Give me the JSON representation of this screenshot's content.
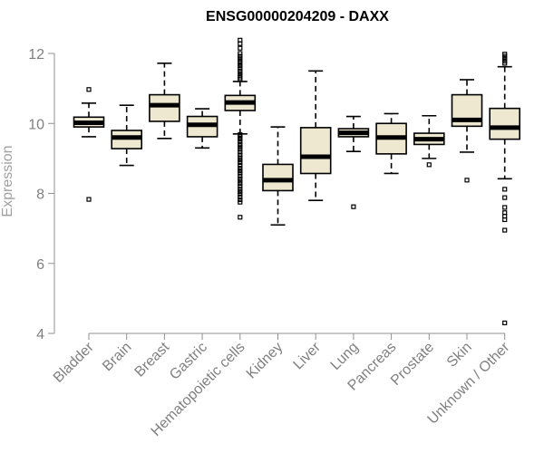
{
  "chart_data": {
    "type": "box",
    "title": "ENSG00000204209 - DAXX",
    "xlabel": "",
    "ylabel": "Expression",
    "ylim": [
      4,
      12
    ],
    "yticks": [
      "4",
      "6",
      "8",
      "10",
      "12"
    ],
    "colors": {
      "box_fill": "#ede8cf",
      "median": "#000000",
      "axis": "#909090"
    },
    "categories": [
      "Bladder",
      "Brain",
      "Breast",
      "Gastric",
      "Hematopoietic cells",
      "Kidney",
      "Liver",
      "Lung",
      "Pancreas",
      "Prostate",
      "Skin",
      "Unknown / Other"
    ],
    "boxes": [
      {
        "min": 9.62,
        "q1": 9.9,
        "median": 10.02,
        "q3": 10.18,
        "max": 10.58,
        "outliers": [
          10.97,
          7.83
        ]
      },
      {
        "min": 8.8,
        "q1": 9.28,
        "median": 9.6,
        "q3": 9.8,
        "max": 10.52,
        "outliers": []
      },
      {
        "min": 9.57,
        "q1": 10.06,
        "median": 10.52,
        "q3": 10.82,
        "max": 11.72,
        "outliers": []
      },
      {
        "min": 9.3,
        "q1": 9.62,
        "median": 9.96,
        "q3": 10.2,
        "max": 10.42,
        "outliers": []
      },
      {
        "min": 9.7,
        "q1": 10.37,
        "median": 10.6,
        "q3": 10.8,
        "max": 11.2,
        "outliers": [
          12.38,
          12.28,
          12.15,
          12.0,
          11.92,
          11.85,
          11.78,
          11.72,
          11.65,
          11.58,
          11.5,
          11.43,
          11.36,
          11.3,
          11.25,
          9.68,
          9.62,
          9.55,
          9.48,
          9.4,
          9.33,
          9.26,
          9.18,
          9.1,
          9.02,
          8.95,
          8.88,
          8.8,
          8.72,
          8.65,
          8.58,
          8.5,
          8.42,
          8.35,
          8.28,
          8.2,
          8.12,
          8.05,
          7.98,
          7.9,
          7.82,
          7.75,
          7.32
        ]
      },
      {
        "min": 7.1,
        "q1": 8.08,
        "median": 8.38,
        "q3": 8.83,
        "max": 9.9,
        "outliers": []
      },
      {
        "min": 7.8,
        "q1": 8.57,
        "median": 9.05,
        "q3": 9.88,
        "max": 11.5,
        "outliers": []
      },
      {
        "min": 9.2,
        "q1": 9.62,
        "median": 9.73,
        "q3": 9.85,
        "max": 10.2,
        "outliers": [
          7.62
        ]
      },
      {
        "min": 8.57,
        "q1": 9.13,
        "median": 9.6,
        "q3": 10.0,
        "max": 10.28,
        "outliers": []
      },
      {
        "min": 9.0,
        "q1": 9.4,
        "median": 9.55,
        "q3": 9.72,
        "max": 10.22,
        "outliers": [
          8.82
        ]
      },
      {
        "min": 9.18,
        "q1": 9.92,
        "median": 10.1,
        "q3": 10.82,
        "max": 11.25,
        "outliers": [
          8.38
        ]
      },
      {
        "min": 8.42,
        "q1": 9.55,
        "median": 9.88,
        "q3": 10.43,
        "max": 11.62,
        "outliers": [
          11.98,
          11.92,
          11.85,
          11.78,
          11.72,
          8.12,
          7.88,
          7.6,
          7.45,
          7.35,
          7.25,
          6.95,
          4.3
        ]
      }
    ]
  }
}
